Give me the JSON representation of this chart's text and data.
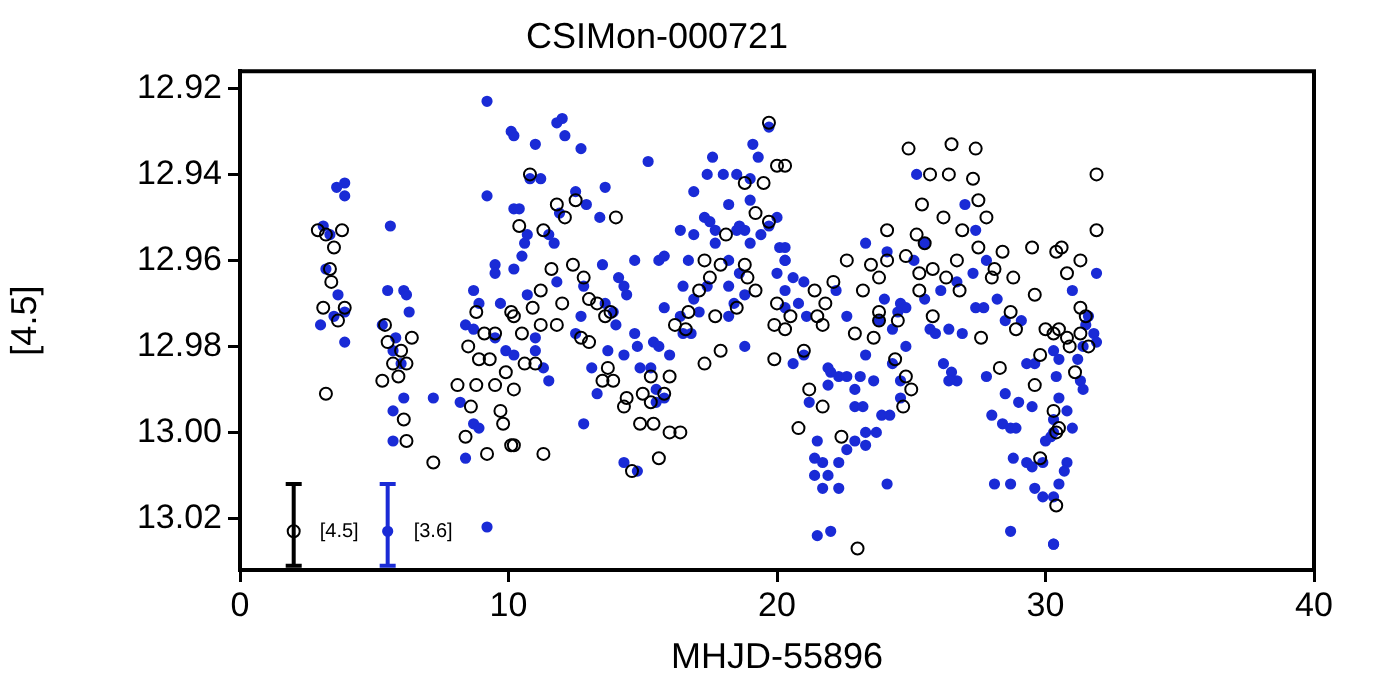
{
  "chart_data": {
    "type": "scatter",
    "title": "CSIMon-000721",
    "xlabel": "MHJD-55896",
    "ylabel": "[4.5]",
    "xlim": [
      0,
      40
    ],
    "xticks": [
      0,
      10,
      20,
      30,
      40
    ],
    "ylim": [
      13.032,
      12.916
    ],
    "yticks": [
      12.92,
      12.94,
      12.96,
      12.98,
      {
        "value": 13,
        "label": "13.00"
      },
      13.02
    ],
    "marker": "circle",
    "legend": false,
    "series": [
      {
        "color": "#000000",
        "x": [
          2.9,
          3.2,
          3.8,
          3.5,
          3.35,
          3.4,
          3.1,
          3.9,
          3.65,
          3.2,
          5.4,
          5.5,
          6.4,
          6.0,
          5.7,
          6.2,
          5.9,
          5.3,
          6.1,
          6.2,
          7.2,
          8.1,
          8.8,
          9.5,
          8.6,
          9.7,
          9.8,
          8.4,
          9.2,
          10.1,
          8.8,
          9.1,
          8.5,
          8.9,
          9.3,
          9.9,
          9.5,
          10.1,
          10.8,
          11.8,
          12.5,
          12.1,
          14.0,
          10.4,
          11.3,
          12.4,
          11.6,
          11.2,
          12.0,
          12.8,
          13.3,
          13.0,
          10.9,
          10.2,
          13.8,
          13.6,
          10.5,
          11.2,
          11.8,
          10.6,
          11.0,
          12.7,
          13.0,
          10.2,
          13.7,
          13.5,
          13.9,
          10.2,
          11.3,
          14.4,
          14.3,
          14.9,
          15.4,
          16.0,
          16.4,
          15.6,
          14.6,
          15.3,
          16.0,
          15.8,
          15.3,
          15.0,
          16.2,
          16.7,
          16.6,
          17.9,
          17.3,
          17.7,
          17.1,
          17.5,
          17.9,
          17.3,
          18.1,
          18.5,
          18.9,
          19.2,
          18.8,
          19.2,
          19.5,
          20.0,
          19.7,
          19.7,
          19.9,
          20.0,
          19.9,
          18.8,
          20.3,
          20.5,
          20.3,
          21.4,
          21.8,
          21.5,
          21.7,
          22.1,
          22.9,
          23.6,
          21.0,
          21.2,
          21.7,
          20.8,
          22.4,
          23.0,
          22.6,
          23.2,
          23.5,
          24.1,
          23.8,
          24.1,
          24.8,
          25.2,
          25.5,
          25.3,
          25.8,
          24.9,
          25.7,
          25.4,
          26.4,
          26.5,
          27.4,
          27.3,
          26.2,
          26.9,
          27.5,
          27.8,
          27.5,
          26.7,
          26.3,
          26.8,
          28.1,
          28.0,
          28.4,
          28.8,
          29.6,
          28.7,
          27.6,
          25.8,
          25.3,
          23.8,
          23.8,
          24.5,
          24.4,
          25.0,
          24.7,
          24.8,
          28.3,
          29.5,
          28.9,
          30.0,
          30.3,
          30.4,
          29.8,
          29.6,
          30.4,
          29.8,
          30.4,
          31.9,
          31.9,
          30.6,
          31.3,
          30.8,
          31.3,
          31.5,
          30.5,
          30.8,
          31.3,
          30.9,
          31.6,
          31.1,
          30.3,
          30.5
        ],
        "values": [
          12.953,
          12.954,
          12.953,
          12.957,
          12.962,
          12.965,
          12.971,
          12.971,
          12.974,
          12.991,
          12.975,
          12.979,
          12.978,
          12.981,
          12.984,
          12.984,
          12.987,
          12.988,
          12.997,
          13.002,
          13.007,
          12.989,
          12.989,
          12.989,
          12.994,
          12.995,
          12.998,
          13.001,
          13.005,
          13.003,
          12.972,
          12.977,
          12.98,
          12.983,
          12.983,
          12.986,
          12.977,
          12.972,
          12.94,
          12.947,
          12.946,
          12.95,
          12.95,
          12.952,
          12.953,
          12.961,
          12.962,
          12.967,
          12.97,
          12.964,
          12.97,
          12.969,
          12.971,
          12.973,
          12.972,
          12.973,
          12.977,
          12.975,
          12.975,
          12.984,
          12.984,
          12.978,
          12.979,
          12.99,
          12.985,
          12.988,
          12.988,
          13.003,
          13.005,
          12.992,
          12.994,
          12.998,
          12.998,
          13.0,
          13.0,
          13.006,
          13.009,
          12.987,
          12.987,
          12.991,
          12.993,
          12.991,
          12.975,
          12.972,
          12.976,
          12.981,
          12.984,
          12.973,
          12.967,
          12.964,
          12.961,
          12.96,
          12.954,
          12.971,
          12.964,
          12.967,
          12.961,
          12.949,
          12.942,
          12.938,
          12.928,
          12.951,
          12.975,
          12.97,
          12.983,
          12.942,
          12.938,
          12.973,
          12.976,
          12.967,
          12.97,
          12.973,
          12.975,
          12.965,
          12.977,
          12.978,
          12.981,
          12.99,
          12.994,
          12.999,
          13.001,
          13.027,
          12.96,
          12.967,
          12.961,
          12.953,
          12.964,
          12.96,
          12.959,
          12.954,
          12.956,
          12.963,
          12.962,
          12.934,
          12.94,
          12.947,
          12.94,
          12.933,
          12.934,
          12.941,
          12.95,
          12.953,
          12.946,
          12.95,
          12.957,
          12.96,
          12.964,
          12.967,
          12.962,
          12.964,
          12.958,
          12.964,
          12.968,
          12.972,
          12.978,
          12.973,
          12.967,
          12.972,
          12.974,
          12.974,
          12.983,
          12.99,
          12.994,
          12.987,
          12.985,
          12.957,
          12.976,
          12.976,
          12.977,
          12.958,
          12.982,
          12.989,
          13.0,
          13.006,
          13.017,
          12.94,
          12.953,
          12.957,
          12.96,
          12.963,
          12.971,
          12.973,
          12.976,
          12.978,
          12.977,
          12.98,
          12.98,
          12.986,
          12.995,
          12.999
        ]
      },
      {
        "color": "#1a2bd6",
        "x": [
          9.2,
          10.1,
          3.9,
          3.6,
          3.9,
          9.2,
          3.1,
          3.35,
          5.6,
          3.2,
          3.65,
          3.5,
          3.0,
          3.9,
          3.9,
          5.5,
          6.1,
          6.2,
          6.3,
          5.3,
          5.8,
          5.7,
          6.0,
          6.1,
          5.7,
          5.7,
          7.2,
          8.2,
          8.7,
          8.4,
          9.2,
          8.7,
          8.4,
          8.7,
          8.9,
          9.5,
          9.7,
          9.5,
          9.9,
          8.9,
          9.5,
          10.2,
          10.2,
          11.0,
          10.8,
          11.2,
          11.8,
          12.0,
          12.1,
          12.7,
          12.5,
          12.9,
          13.6,
          11.9,
          13.4,
          15.2,
          10.4,
          10.6,
          10.7,
          11.5,
          11.7,
          10.5,
          10.2,
          13.5,
          14.7,
          15.6,
          15.8,
          14.1,
          14.3,
          14.4,
          12.7,
          12.8,
          11.8,
          10.7,
          13.6,
          13.9,
          14.0,
          12.5,
          11.0,
          11.0,
          11.3,
          10.2,
          11.5,
          13.1,
          13.3,
          13.7,
          14.3,
          14.7,
          14.8,
          15.4,
          15.6,
          14.9,
          15.3,
          15.5,
          16.0,
          15.8,
          16.4,
          16.5,
          16.8,
          16.9,
          16.5,
          16.7,
          16.4,
          16.9,
          16.9,
          17.3,
          17.5,
          17.6,
          17.4,
          18.0,
          18.2,
          18.5,
          19.0,
          19.0,
          19.3,
          19.1,
          19.7,
          18.6,
          18.5,
          17.7,
          17.7,
          18.8,
          19.0,
          19.4,
          19.7,
          20.0,
          20.1,
          20.3,
          20.0,
          18.2,
          18.6,
          18.8,
          18.4,
          18.8,
          17.1,
          18.2,
          17.4,
          18.2,
          12.8,
          14.3,
          14.8,
          15.8,
          15.5,
          20.3,
          20.3,
          20.6,
          21.0,
          20.3,
          20.8,
          20.3,
          21.1,
          22.2,
          22.6,
          23.3,
          24.1,
          25.2,
          25.5,
          27.0,
          27.4,
          27.8,
          27.3,
          26.7,
          26.1,
          25.5,
          25.1,
          24.6,
          24.8,
          24.5,
          24.0,
          23.8,
          24.3,
          24.8,
          25.7,
          25.9,
          26.4,
          26.9,
          27.4,
          27.7,
          28.2,
          28.5,
          29.1,
          29.3,
          29.6,
          30.3,
          20.6,
          21.0,
          21.9,
          22.0,
          21.9,
          22.3,
          22.6,
          23.1,
          23.3,
          23.6,
          22.9,
          21.2,
          22.9,
          23.2,
          23.9,
          23.3,
          22.6,
          22.9,
          21.5,
          23.7,
          23.3,
          21.4,
          21.7,
          22.3,
          21.4,
          21.9,
          21.7,
          22.3,
          24.1,
          21.5,
          22.0,
          24.3,
          24.6,
          24.6,
          26.2,
          26.5,
          26.7,
          26.4,
          27.8,
          28.5,
          29.0,
          29.5,
          28.0,
          28.4,
          28.7,
          28.9,
          28.8,
          29.3,
          29.5,
          29.9,
          30.0,
          30.2,
          29.6,
          29.9,
          28.1,
          28.7,
          28.7,
          30.3,
          24.2,
          31.9,
          31.0,
          31.6,
          31.5,
          31.8,
          31.9,
          31.4,
          31.2,
          30.5,
          31.3,
          31.4,
          30.4,
          30.5,
          30.8,
          31.0,
          30.3,
          30.3,
          30.8,
          30.7,
          30.5,
          30.3,
          30.3
        ],
        "values": [
          12.923,
          12.93,
          12.942,
          12.943,
          12.945,
          12.945,
          12.952,
          12.954,
          12.952,
          12.962,
          12.968,
          12.973,
          12.975,
          12.972,
          12.979,
          12.967,
          12.967,
          12.968,
          12.972,
          12.975,
          12.978,
          12.981,
          12.984,
          12.992,
          12.995,
          13.002,
          12.992,
          12.993,
          12.998,
          13.006,
          13.022,
          12.967,
          12.975,
          12.976,
          12.97,
          12.961,
          12.97,
          12.963,
          12.981,
          12.999,
          12.978,
          12.948,
          12.931,
          12.933,
          12.941,
          12.941,
          12.928,
          12.927,
          12.931,
          12.934,
          12.944,
          12.947,
          12.943,
          12.949,
          12.95,
          12.937,
          12.948,
          12.956,
          12.954,
          12.954,
          12.956,
          12.959,
          12.962,
          12.961,
          12.96,
          12.96,
          12.959,
          12.964,
          12.966,
          12.968,
          12.973,
          12.966,
          12.965,
          12.968,
          12.97,
          12.972,
          12.975,
          12.977,
          12.978,
          12.981,
          12.985,
          12.982,
          12.988,
          12.985,
          12.991,
          12.981,
          12.982,
          12.977,
          12.98,
          12.979,
          12.98,
          12.985,
          12.985,
          12.99,
          12.982,
          12.971,
          12.973,
          12.977,
          12.977,
          12.969,
          12.966,
          12.96,
          12.953,
          12.954,
          12.944,
          12.95,
          12.951,
          12.936,
          12.94,
          12.94,
          12.947,
          12.94,
          12.941,
          12.946,
          12.936,
          12.933,
          12.929,
          12.952,
          12.953,
          12.956,
          12.953,
          12.953,
          12.956,
          12.954,
          12.952,
          12.95,
          12.957,
          12.96,
          12.963,
          12.96,
          12.963,
          12.968,
          12.97,
          12.98,
          12.972,
          12.973,
          12.966,
          12.966,
          12.998,
          13.007,
          13.009,
          12.992,
          12.993,
          12.957,
          12.96,
          12.964,
          12.965,
          12.967,
          12.97,
          12.971,
          12.973,
          12.967,
          12.973,
          12.956,
          12.958,
          12.94,
          12.956,
          12.947,
          12.953,
          12.96,
          12.963,
          12.965,
          12.967,
          12.969,
          12.96,
          12.97,
          12.971,
          12.972,
          12.969,
          12.974,
          12.976,
          12.98,
          12.976,
          12.977,
          12.976,
          12.977,
          12.971,
          12.971,
          12.969,
          12.974,
          12.974,
          12.984,
          12.984,
          12.981,
          12.984,
          12.982,
          12.985,
          12.986,
          12.989,
          12.987,
          12.987,
          12.987,
          12.982,
          12.988,
          12.99,
          12.993,
          12.994,
          12.994,
          12.996,
          13.0,
          13.004,
          13.002,
          13.002,
          13.0,
          13.003,
          13.006,
          13.007,
          13.007,
          13.01,
          13.01,
          13.013,
          13.013,
          13.012,
          13.024,
          13.023,
          12.984,
          12.992,
          12.988,
          12.984,
          12.986,
          12.988,
          12.988,
          12.987,
          12.991,
          12.993,
          12.994,
          12.996,
          12.998,
          12.999,
          12.999,
          13.006,
          13.007,
          13.008,
          13.007,
          13.002,
          13.001,
          13.013,
          13.015,
          13.012,
          13.012,
          13.023,
          13.026,
          12.996,
          12.963,
          12.967,
          12.973,
          12.975,
          12.977,
          12.979,
          12.98,
          12.983,
          12.983,
          12.988,
          12.99,
          12.987,
          12.992,
          12.995,
          12.999,
          12.997,
          13.0,
          13.007,
          13.009,
          13.012,
          13.015,
          13.026
        ]
      },
      {
        "name": "[4.5]",
        "color": "#000000",
        "x": [
          2.0
        ],
        "values": [
          13.023
        ],
        "errors": [
          [
            13.012,
            13.031
          ]
        ]
      },
      {
        "name": "[3.6]",
        "color": "#1a2bd6",
        "x": [
          5.5
        ],
        "values": [
          13.023
        ],
        "errors": [
          [
            13.012,
            13.031
          ]
        ]
      }
    ]
  }
}
